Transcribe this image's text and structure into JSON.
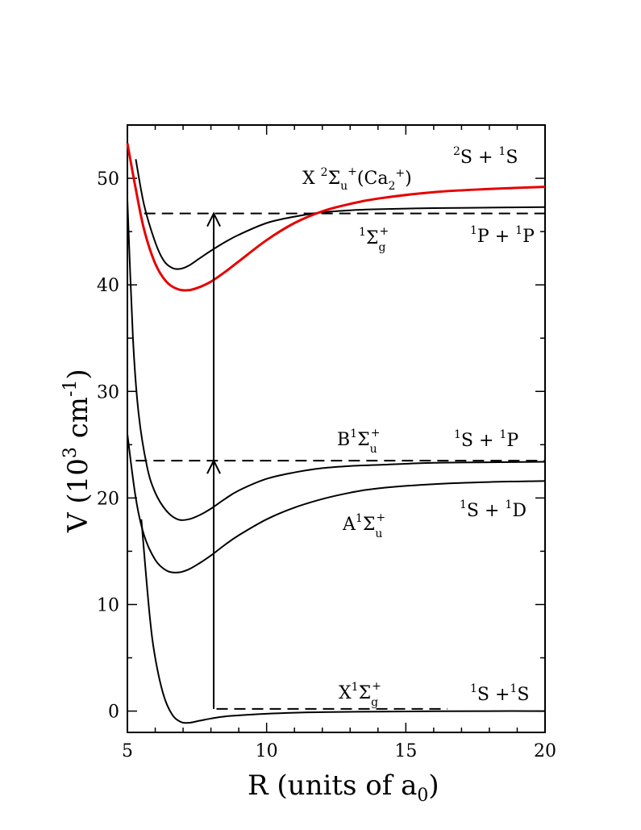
{
  "chart_data": {
    "type": "line",
    "xlabel": "R (units of a",
    "xlabel_sub": "0",
    "xlabel_close": ")",
    "ylabel": "V (10",
    "ylabel_sup1": "3",
    "ylabel_mid": " cm",
    "ylabel_sup2": "-1",
    "ylabel_close": ")",
    "xlim": [
      5,
      20
    ],
    "ylim": [
      -2,
      55
    ],
    "xticks": [
      5,
      10,
      15,
      20
    ],
    "yticks": [
      0,
      10,
      20,
      30,
      40,
      50
    ],
    "xtick_labels": [
      "5",
      "10",
      "15",
      "20"
    ],
    "ytick_labels": [
      "0",
      "10",
      "20",
      "30",
      "40",
      "50"
    ],
    "series": [
      {
        "color": "#000000",
        "x": [
          5.5,
          5.8,
          6.0,
          6.3,
          6.6,
          6.9,
          7.2,
          7.6,
          8.0,
          8.5,
          9.0,
          10,
          11,
          12,
          14,
          16,
          18,
          20
        ],
        "y": [
          18,
          9,
          5,
          1.5,
          -0.3,
          -1.0,
          -1.1,
          -0.9,
          -0.7,
          -0.5,
          -0.4,
          -0.25,
          -0.15,
          -0.1,
          -0.05,
          -0.02,
          0,
          0
        ]
      },
      {
        "color": "#000000",
        "x": [
          5.0,
          5.3,
          5.6,
          6.0,
          6.4,
          6.8,
          7.2,
          7.6,
          8.0,
          8.5,
          9.0,
          10,
          11,
          12,
          13,
          14,
          16,
          18,
          20
        ],
        "y": [
          26,
          20,
          16.5,
          14.2,
          13.2,
          13.0,
          13.3,
          13.9,
          14.6,
          15.6,
          16.5,
          18.0,
          19.1,
          19.9,
          20.5,
          20.9,
          21.3,
          21.5,
          21.6
        ]
      },
      {
        "color": "#000000",
        "x": [
          5.0,
          5.2,
          5.4,
          5.7,
          6.0,
          6.4,
          6.8,
          7.2,
          7.6,
          8.0,
          8.5,
          9.0,
          10,
          11,
          12,
          13,
          14,
          16,
          18,
          20
        ],
        "y": [
          48,
          35,
          28,
          23,
          20.5,
          18.8,
          18.0,
          18.0,
          18.4,
          19.0,
          19.9,
          20.7,
          21.8,
          22.4,
          22.8,
          23.0,
          23.1,
          23.3,
          23.35,
          23.4
        ]
      },
      {
        "color": "#000000",
        "x": [
          5.3,
          5.6,
          6.0,
          6.3,
          6.6,
          6.9,
          7.2,
          7.6,
          8.0,
          8.5,
          9.0,
          10,
          11,
          12,
          13,
          14,
          16,
          18,
          20
        ],
        "y": [
          51.8,
          47.5,
          44.0,
          42.3,
          41.6,
          41.5,
          41.8,
          42.5,
          43.2,
          44.0,
          44.7,
          45.8,
          46.4,
          46.8,
          47.0,
          47.1,
          47.2,
          47.25,
          47.3
        ]
      },
      {
        "name": "X ²Σu⁺(Ca₂⁺)",
        "color": "#e60000",
        "x": [
          5.0,
          5.3,
          5.6,
          6.0,
          6.4,
          6.8,
          7.2,
          7.6,
          8.0,
          8.5,
          9.0,
          10,
          11,
          12,
          13,
          14,
          16,
          18,
          20
        ],
        "y": [
          53.3,
          49.0,
          45.2,
          42.0,
          40.3,
          39.6,
          39.5,
          39.8,
          40.3,
          41.2,
          42.2,
          44.2,
          45.8,
          46.9,
          47.6,
          48.1,
          48.7,
          49.0,
          49.2
        ]
      }
    ],
    "hlines": [
      {
        "y": 0.2,
        "x": [
          8.2,
          16.5
        ]
      },
      {
        "y": 23.5,
        "x": [
          5.3,
          20
        ]
      },
      {
        "y": 46.7,
        "x": [
          5.6,
          20
        ]
      }
    ],
    "arrows": [
      {
        "x": 8.1,
        "y": [
          0.2,
          23.5
        ]
      },
      {
        "x": 8.1,
        "y": [
          23.5,
          46.7
        ]
      }
    ]
  },
  "labels": {
    "X2Sigma": {
      "a": "X ",
      "b": "2",
      "c": "Σ",
      "d": "u",
      "e": "+",
      "f": "(Ca",
      "g": "2",
      "h": "+",
      "i": ")"
    },
    "s2s1": {
      "a": "2",
      "b": "S + ",
      "c": "1",
      "d": "S"
    },
    "sig1g": {
      "a": "1",
      "b": "Σ",
      "c": "g",
      "d": "+"
    },
    "p1p1": {
      "a": "1",
      "b": "P + ",
      "c": "1",
      "d": "P"
    },
    "B1Sigma": {
      "a": "B",
      "b": "1",
      "c": "Σ",
      "d": "u",
      "e": "+"
    },
    "s1p1": {
      "a": "1",
      "b": "S + ",
      "c": "1",
      "d": "P"
    },
    "A1Sigma": {
      "a": "A",
      "b": "1",
      "c": "Σ",
      "d": "u",
      "e": "+"
    },
    "s1d1": {
      "a": "1",
      "b": "S + ",
      "c": "1",
      "d": "D"
    },
    "X1Sigma": {
      "a": "X",
      "b": "1",
      "c": "Σ",
      "d": "g",
      "e": "+"
    },
    "s1s1": {
      "a": "1",
      "b": "S +",
      "c": "1",
      "d": "S"
    }
  }
}
